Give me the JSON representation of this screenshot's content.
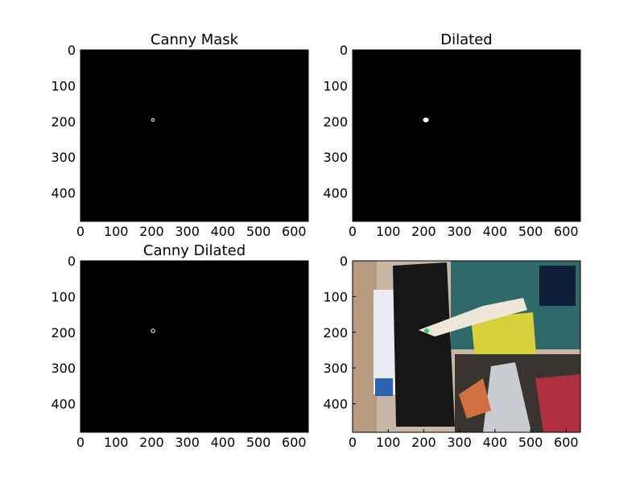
{
  "chart_data": [
    {
      "type": "image",
      "title": "Canny Mask",
      "xlim": [
        0,
        640
      ],
      "ylim": [
        480,
        0
      ],
      "xticks": [
        0,
        100,
        200,
        300,
        400,
        500,
        600
      ],
      "yticks": [
        0,
        100,
        200,
        300,
        400
      ]
    },
    {
      "type": "image",
      "title": "Dilated",
      "xlim": [
        0,
        640
      ],
      "ylim": [
        480,
        0
      ],
      "xticks": [
        0,
        100,
        200,
        300,
        400,
        500,
        600
      ],
      "yticks": [
        0,
        100,
        200,
        300,
        400
      ]
    },
    {
      "type": "image",
      "title": "Canny Dilated",
      "xlim": [
        0,
        640
      ],
      "ylim": [
        480,
        0
      ],
      "xticks": [
        0,
        100,
        200,
        300,
        400,
        500,
        600
      ],
      "yticks": [
        0,
        100,
        200,
        300,
        400
      ]
    },
    {
      "type": "image",
      "xlim": [
        0,
        640
      ],
      "ylim": [
        480,
        0
      ],
      "xticks": [
        0,
        100,
        200,
        300,
        400,
        500,
        600
      ],
      "yticks": [
        0,
        100,
        200,
        300,
        400
      ]
    }
  ]
}
